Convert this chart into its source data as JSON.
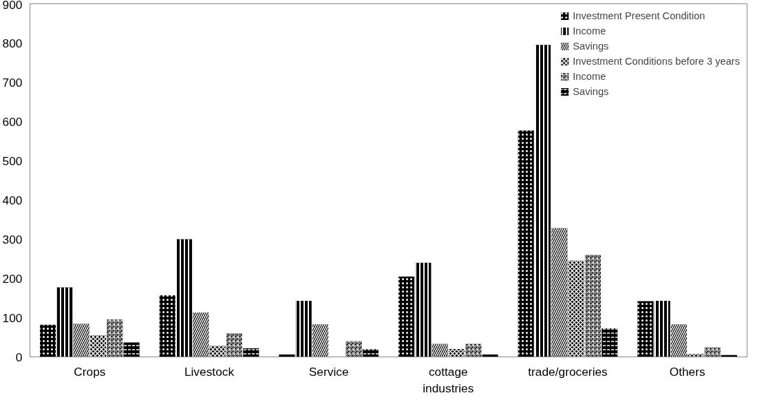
{
  "chart_data": {
    "type": "bar",
    "categories": [
      "Crops",
      "Livestock",
      "Service",
      "cottage industries",
      "trade/groceries",
      "Others"
    ],
    "series": [
      {
        "name": "Investment Present Condition",
        "color": "#000000",
        "values": [
          82,
          157,
          6,
          205,
          577,
          142
        ]
      },
      {
        "name": "Income",
        "color": "#000000",
        "values": [
          177,
          300,
          143,
          240,
          795,
          143
        ]
      },
      {
        "name": "Savings",
        "color": "#000000",
        "values": [
          84,
          113,
          83,
          33,
          328,
          83
        ]
      },
      {
        "name": "Investment Conditions before 3 years",
        "color": "#000000",
        "values": [
          55,
          28,
          0,
          20,
          245,
          8
        ]
      },
      {
        "name": "Income",
        "color": "#000000",
        "values": [
          95,
          60,
          40,
          33,
          260,
          24
        ]
      },
      {
        "name": "Savings",
        "color": "#000000",
        "values": [
          37,
          22,
          20,
          6,
          73,
          5
        ]
      }
    ],
    "ylim": [
      0,
      900
    ],
    "yticks": [
      0,
      100,
      200,
      300,
      400,
      500,
      600,
      700,
      800,
      900
    ],
    "grid": false,
    "legend": "top right"
  }
}
